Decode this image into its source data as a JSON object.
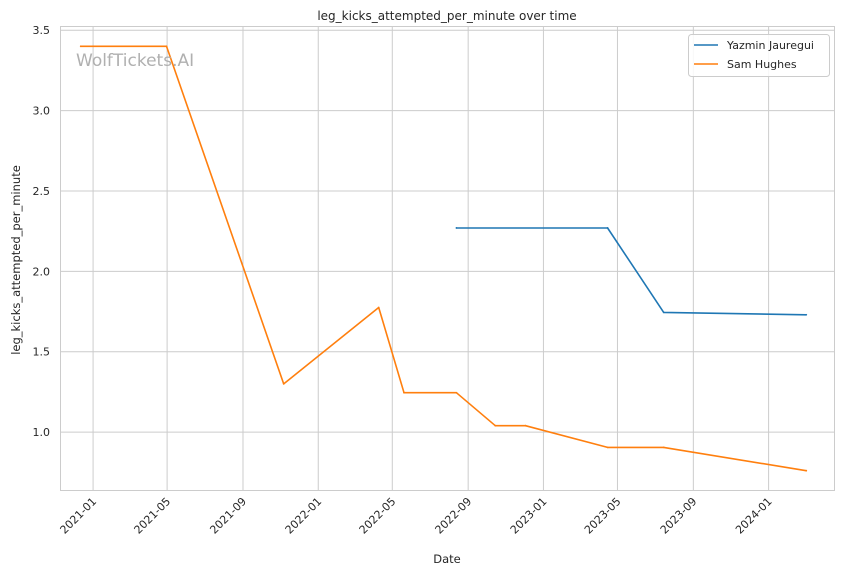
{
  "chart_data": {
    "type": "line",
    "title": "leg_kicks_attempted_per_minute over time",
    "xlabel": "Date",
    "ylabel": "leg_kicks_attempted_per_minute",
    "watermark": "WolfTickets.AI",
    "x_ticks": [
      "2021-01",
      "2021-05",
      "2021-09",
      "2022-01",
      "2022-05",
      "2022-09",
      "2023-01",
      "2023-05",
      "2023-09",
      "2024-01"
    ],
    "y_ticks": [
      "1.0",
      "1.5",
      "2.0",
      "2.5",
      "3.0",
      "3.5"
    ],
    "xlim": [
      "2020-11-10",
      "2024-04-16"
    ],
    "ylim": [
      0.64,
      3.52
    ],
    "grid": true,
    "legend_position": "top-right",
    "series": [
      {
        "name": "Yazmin Jauregui",
        "color": "#1f77b4",
        "points": [
          {
            "x": "2022-08-13",
            "y": 2.27
          },
          {
            "x": "2023-04-15",
            "y": 2.27
          },
          {
            "x": "2023-07-15",
            "y": 1.745
          },
          {
            "x": "2024-03-02",
            "y": 1.73
          }
        ]
      },
      {
        "name": "Sam Hughes",
        "color": "#ff7f0e",
        "points": [
          {
            "x": "2020-12-12",
            "y": 3.4
          },
          {
            "x": "2021-04-30",
            "y": 3.4
          },
          {
            "x": "2021-11-06",
            "y": 1.3
          },
          {
            "x": "2022-04-09",
            "y": 1.775
          },
          {
            "x": "2022-05-20",
            "y": 1.245
          },
          {
            "x": "2022-08-13",
            "y": 1.245
          },
          {
            "x": "2022-10-15",
            "y": 1.04
          },
          {
            "x": "2022-12-03",
            "y": 1.04
          },
          {
            "x": "2023-04-15",
            "y": 0.905
          },
          {
            "x": "2023-07-15",
            "y": 0.905
          },
          {
            "x": "2024-03-02",
            "y": 0.76
          }
        ]
      }
    ]
  }
}
